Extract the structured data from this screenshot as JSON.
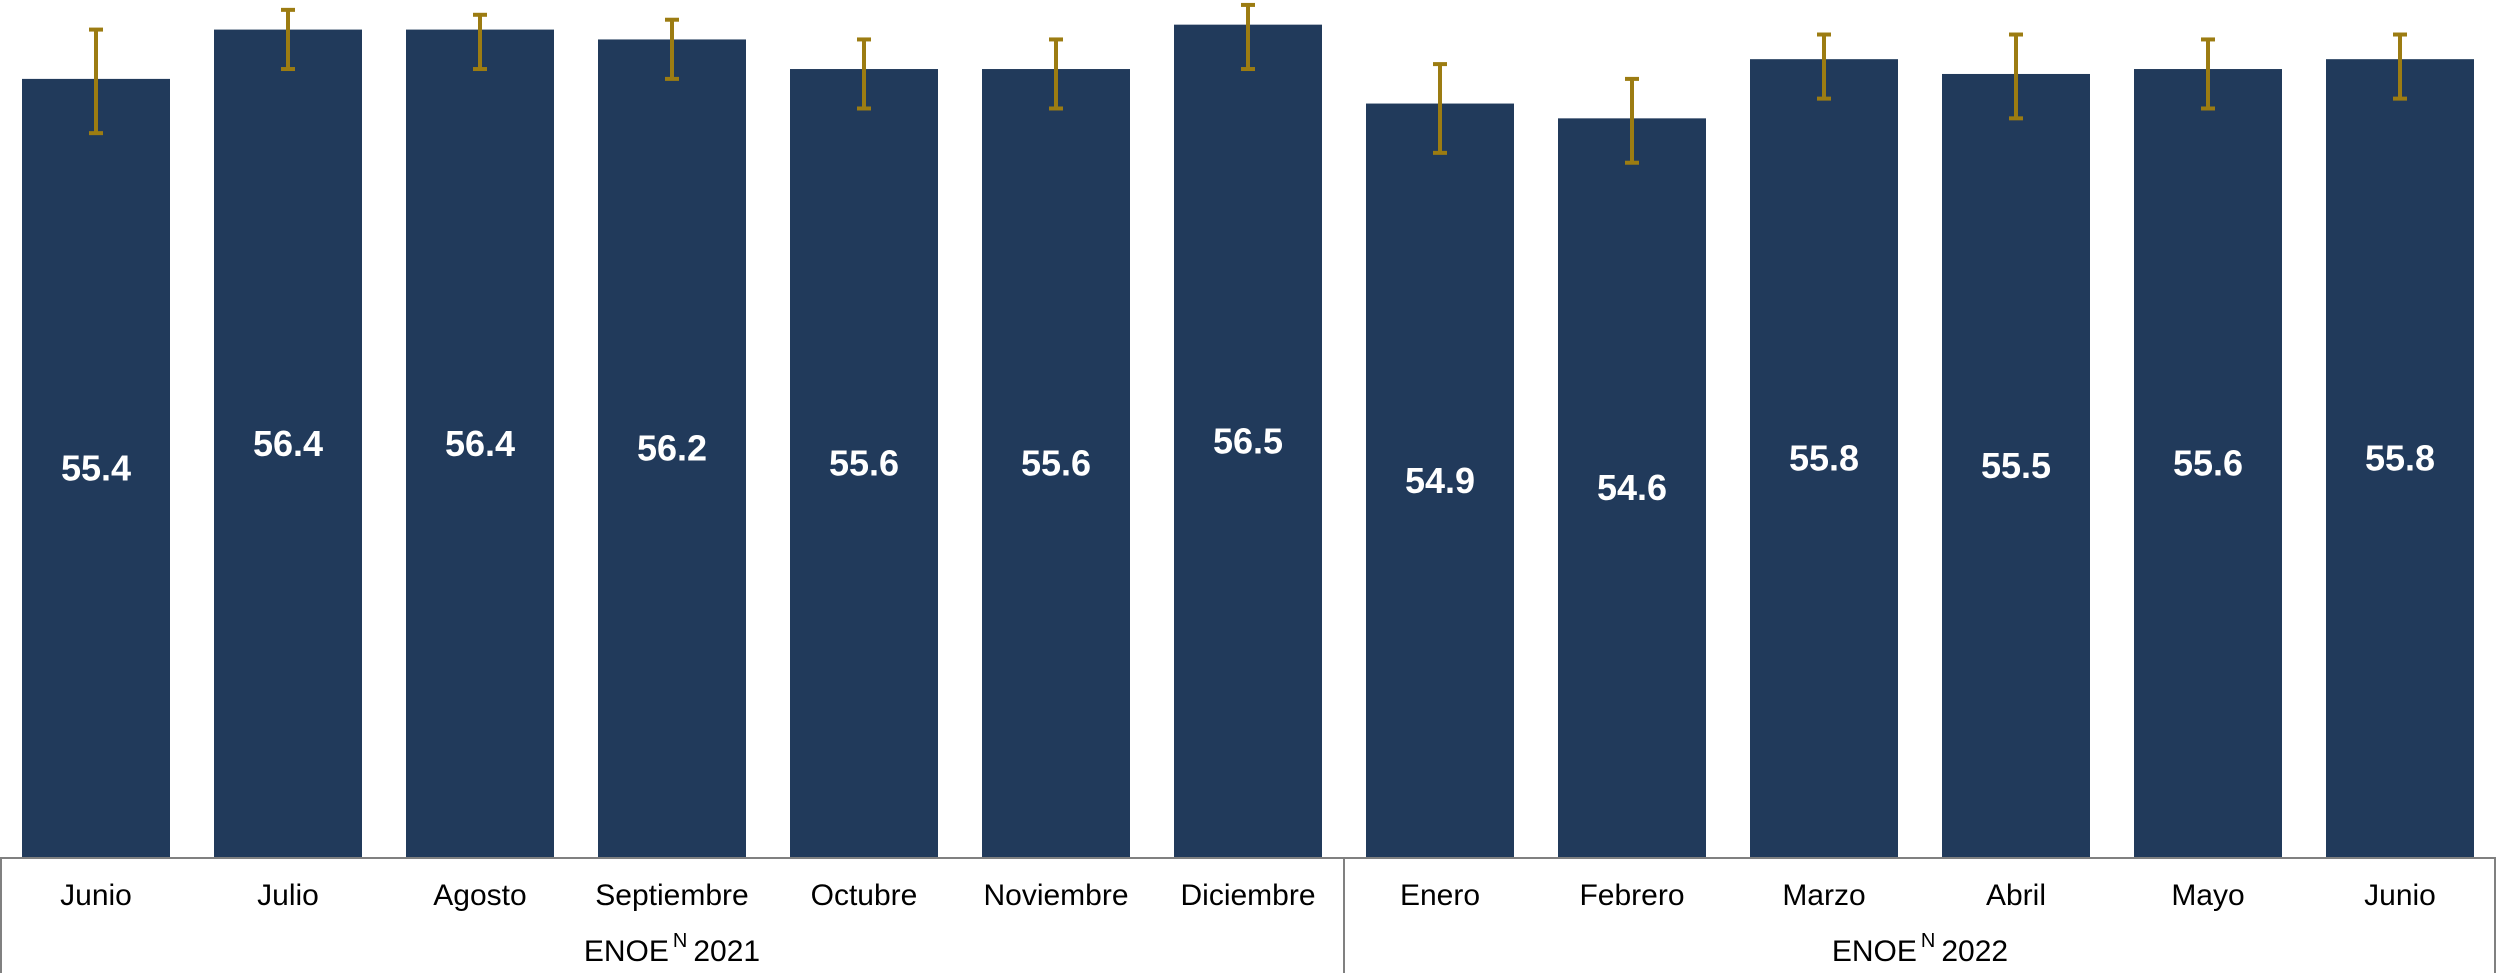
{
  "chart_data": {
    "type": "bar",
    "categories": [
      "Junio",
      "Julio",
      "Agosto",
      "Septiembre",
      "Octubre",
      "Noviembre",
      "Diciembre",
      "Enero",
      "Febrero",
      "Marzo",
      "Abril",
      "Mayo",
      "Junio"
    ],
    "values": [
      55.4,
      56.4,
      56.4,
      56.2,
      55.6,
      55.6,
      56.5,
      54.9,
      54.6,
      55.8,
      55.5,
      55.6,
      55.8
    ],
    "value_labels": [
      "55.4",
      "56.4",
      "56.4",
      "56.2",
      "55.6",
      "55.6",
      "56.5",
      "54.9",
      "54.6",
      "55.8",
      "55.5",
      "55.6",
      "55.8"
    ],
    "error_bars": [
      [
        54.3,
        56.4
      ],
      [
        55.6,
        56.8
      ],
      [
        55.6,
        56.7
      ],
      [
        55.4,
        56.6
      ],
      [
        54.8,
        56.2
      ],
      [
        54.8,
        56.2
      ],
      [
        55.6,
        56.9
      ],
      [
        53.9,
        55.7
      ],
      [
        53.7,
        55.4
      ],
      [
        55.0,
        56.3
      ],
      [
        54.6,
        56.3
      ],
      [
        54.8,
        56.2
      ],
      [
        55.0,
        56.3
      ]
    ],
    "groups": [
      {
        "label": "ENOE",
        "superscript": "N",
        "year": "2021",
        "start": 0,
        "end": 6
      },
      {
        "label": "ENOE",
        "superscript": "N",
        "year": "2022",
        "start": 7,
        "end": 12
      }
    ],
    "title": "",
    "xlabel": "",
    "ylabel": "",
    "ylim": [
      39.6,
      57.0
    ],
    "grid": false,
    "colors": {
      "bar": "#213a5b",
      "error_bar": "#9c7c12",
      "axis": "#808080",
      "value_text": "#ffffff",
      "label_text": "#000000"
    }
  }
}
